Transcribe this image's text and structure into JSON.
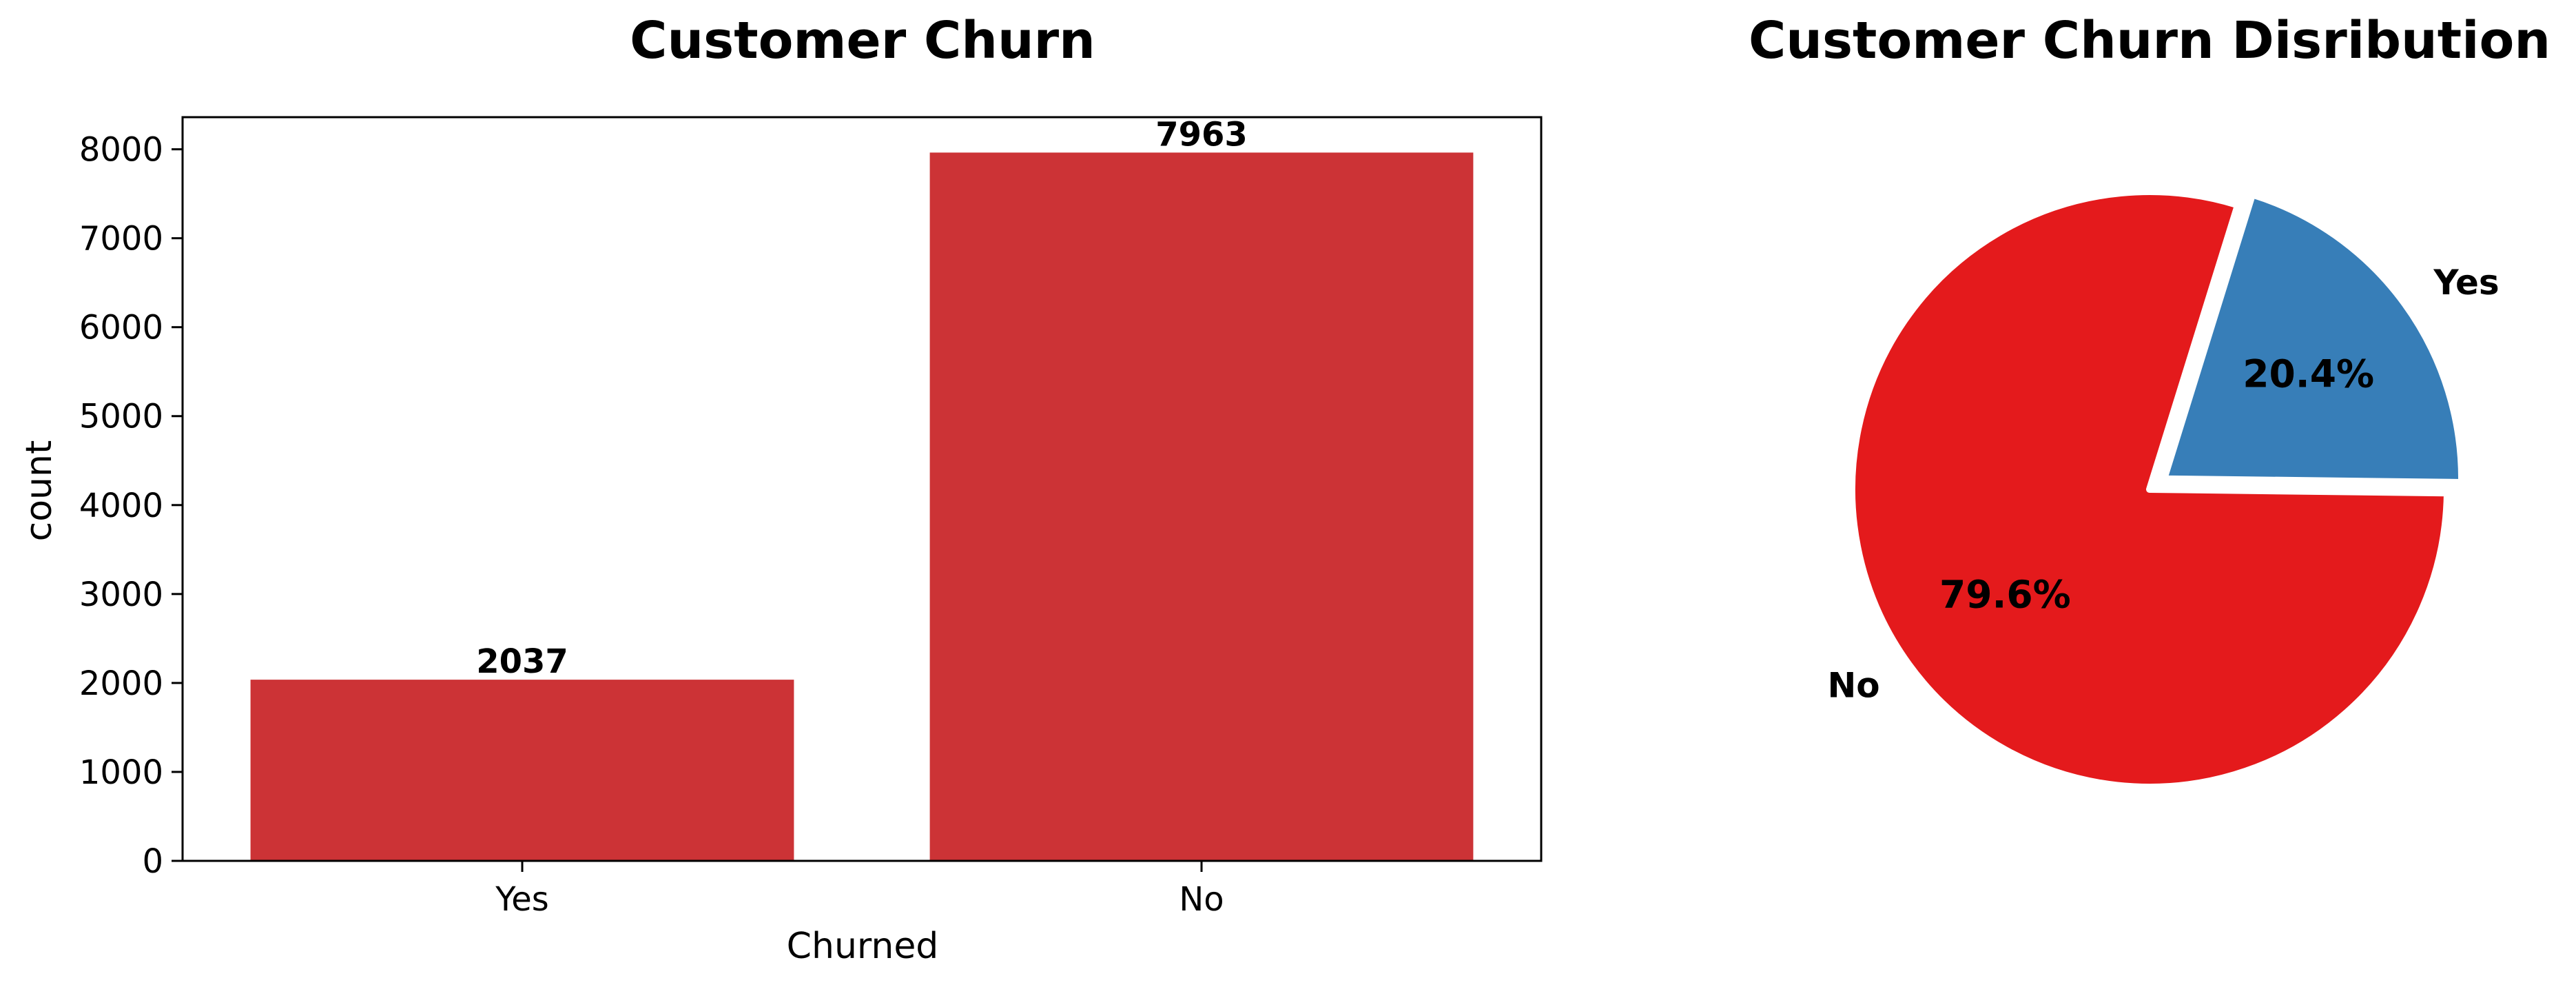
{
  "chart_data": [
    {
      "type": "bar",
      "title": "Customer Churn",
      "xlabel": "Churned",
      "ylabel": "count",
      "categories": [
        "Yes",
        "No"
      ],
      "values": [
        2037,
        7963
      ],
      "data_labels": [
        "2037",
        "7963"
      ],
      "yticks": [
        0,
        1000,
        2000,
        3000,
        4000,
        5000,
        6000,
        7000,
        8000
      ],
      "ylim": [
        0,
        8361
      ],
      "grid": false,
      "color": "#cc3336"
    },
    {
      "type": "pie",
      "title": "Customer Churn Disribution",
      "labels": [
        "No",
        "Yes"
      ],
      "values": [
        79.6,
        20.4
      ],
      "pct_labels": [
        "79.6%",
        "20.4%"
      ],
      "exploded": [
        "Yes"
      ],
      "colors": [
        "#e41a1c",
        "#377eb8"
      ]
    }
  ]
}
